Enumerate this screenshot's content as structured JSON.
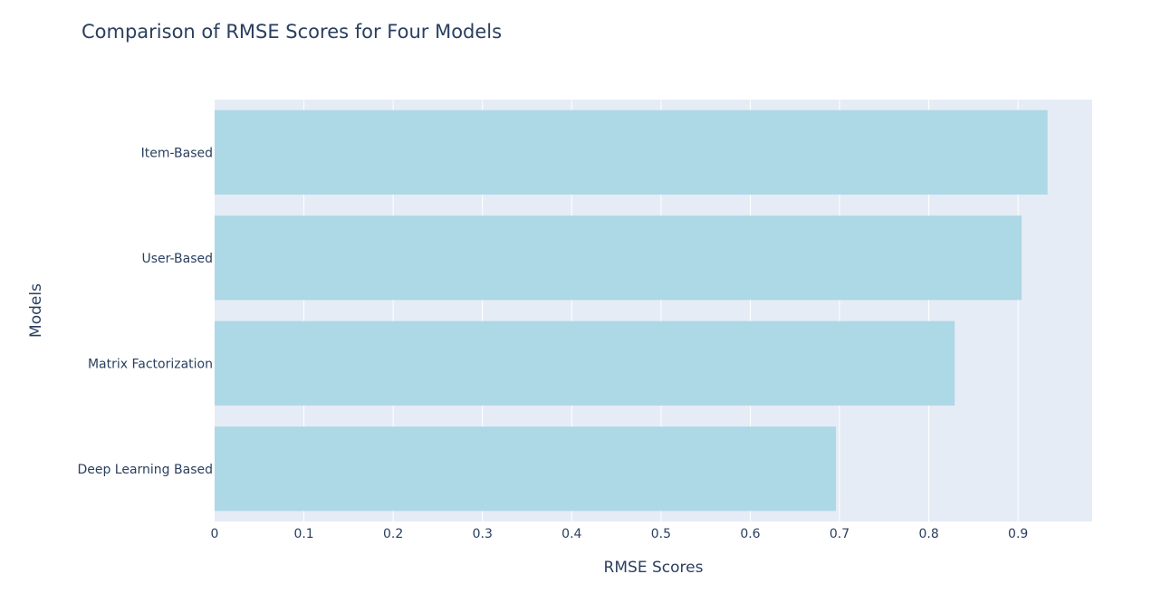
{
  "chart_data": {
    "type": "bar",
    "orientation": "horizontal",
    "title": "Comparison of RMSE Scores for Four Models",
    "xlabel": "RMSE Scores",
    "ylabel": "Models",
    "categories": [
      "Item-Based",
      "User-Based",
      "Matrix Factorization",
      "Deep Learning Based"
    ],
    "values": [
      0.933,
      0.904,
      0.829,
      0.696
    ],
    "xlim": [
      0,
      0.983
    ],
    "xticks": [
      "0",
      "0.1",
      "0.2",
      "0.3",
      "0.4",
      "0.5",
      "0.6",
      "0.7",
      "0.8",
      "0.9"
    ],
    "grid": true,
    "colors": {
      "bar": "#add8e6",
      "plot_bg": "#e5ecf6",
      "grid": "#ffffff",
      "text": "#2a3f5f"
    }
  }
}
